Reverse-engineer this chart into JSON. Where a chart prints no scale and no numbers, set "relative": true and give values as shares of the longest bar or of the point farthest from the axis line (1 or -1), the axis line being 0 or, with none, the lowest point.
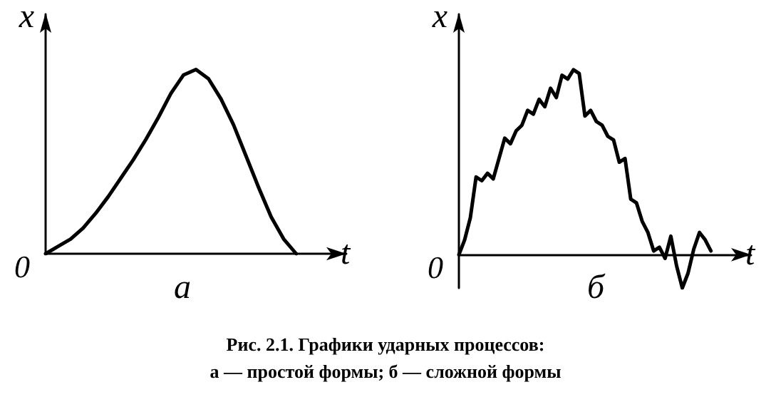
{
  "chart_data": [
    {
      "type": "line",
      "relative": true,
      "xlabel": "t",
      "ylabel": "x",
      "color": "#000000",
      "line_style": "solid",
      "categories": [
        null,
        null,
        null,
        null,
        null,
        null,
        null,
        null,
        null,
        null,
        null,
        null,
        null,
        null,
        null,
        null,
        null,
        null,
        null,
        null,
        null,
        null,
        null,
        null,
        null
      ],
      "values": [
        0,
        0.04,
        0.08,
        0.14,
        0.22,
        0.31,
        0.41,
        0.51,
        0.62,
        0.74,
        0.87,
        0.97,
        1.0,
        0.95,
        0.84,
        0.7,
        0.53,
        0.36,
        0.2,
        0.08,
        0,
        null,
        null,
        null,
        null
      ],
      "annotations": [
        "0",
        "а",
        "Рис. 2.1. Графики ударных процессов:",
        "а — простой формы; б — сложной формы"
      ]
    },
    {
      "type": "line",
      "relative": true,
      "xlabel": "t",
      "ylabel": "x",
      "color": "#000000",
      "line_style": "solid",
      "categories": [
        null,
        null,
        null,
        null,
        null,
        null,
        null,
        null,
        null,
        null,
        null,
        null,
        null,
        null,
        null,
        null,
        null,
        null,
        null,
        null,
        null,
        null,
        null,
        null,
        null,
        null,
        null,
        null,
        null,
        null,
        null,
        null,
        null,
        null,
        null,
        null,
        null,
        null,
        null,
        null,
        null,
        null,
        null,
        null,
        null,
        null,
        null,
        null,
        null,
        null,
        null,
        null
      ],
      "values": [
        0,
        0.08,
        0.2,
        0.42,
        0.4,
        0.44,
        0.41,
        0.52,
        0.63,
        0.6,
        0.67,
        0.7,
        0.78,
        0.76,
        0.84,
        0.8,
        0.9,
        0.85,
        0.97,
        0.95,
        1.0,
        0.98,
        0.75,
        0.78,
        0.72,
        0.7,
        0.64,
        0.62,
        0.5,
        0.52,
        0.3,
        0.28,
        0.18,
        0.12,
        0.02,
        0.04,
        -0.02,
        0.1,
        -0.06,
        -0.18,
        -0.1,
        0.03,
        0.12,
        0.08,
        0.02,
        null,
        null,
        null,
        null,
        null,
        null,
        null
      ],
      "annotations": [
        "0",
        "б"
      ]
    }
  ]
}
